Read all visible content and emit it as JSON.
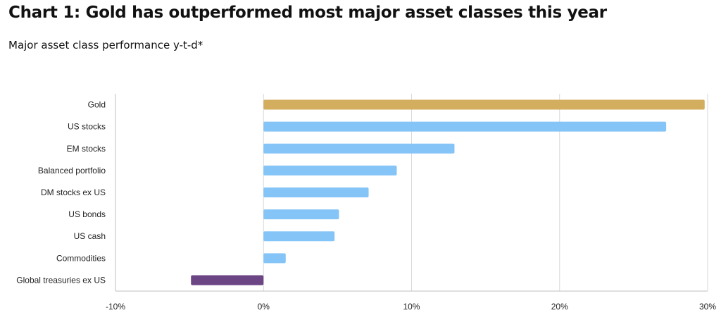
{
  "header": {
    "title": "Chart 1: Gold has outperformed most major asset classes this year",
    "subtitle": "Major asset class performance y-t-d*"
  },
  "chart_data": {
    "type": "bar",
    "orientation": "horizontal",
    "title": "Chart 1: Gold has outperformed most major asset classes this year",
    "subtitle": "Major asset class performance y-t-d*",
    "categories": [
      "Gold",
      "US stocks",
      "EM stocks",
      "Balanced portfolio",
      "DM stocks ex US",
      "US bonds",
      "US cash",
      "Commodities",
      "Global treasuries ex US"
    ],
    "values": [
      29.8,
      27.2,
      12.9,
      9.0,
      7.1,
      5.1,
      4.8,
      1.5,
      -4.9
    ],
    "colors": [
      "#d4ae5f",
      "#85c4f7",
      "#85c4f7",
      "#85c4f7",
      "#85c4f7",
      "#85c4f7",
      "#85c4f7",
      "#85c4f7",
      "#6c4585"
    ],
    "xlim": [
      -10,
      30
    ],
    "xticks": [
      -10,
      0,
      10,
      20,
      30
    ],
    "tick_labels": [
      "-10%",
      "0%",
      "10%",
      "20%",
      "30%"
    ],
    "xlabel": "",
    "ylabel": "",
    "grid": "vertical"
  }
}
